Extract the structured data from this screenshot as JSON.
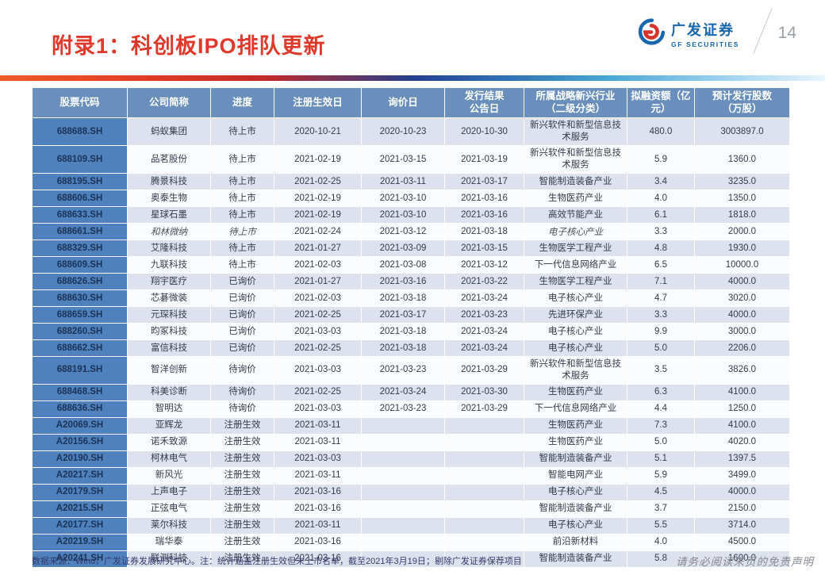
{
  "header": {
    "title": "附录1：科创板IPO排队更新",
    "page_number": "14",
    "logo_cn": "广发证券",
    "logo_en": "GF SECURITIES"
  },
  "table": {
    "columns": [
      "股票代码",
      "公司简称",
      "进度",
      "注册生效日",
      "询价日",
      "发行结果\n公告日",
      "所属战略新兴行业\n（二级分类）",
      "拟融资额（亿\n元）",
      "预计发行股数\n（万股）"
    ],
    "column_keys": [
      "code",
      "name",
      "progress",
      "reg-date",
      "inquiry-date",
      "result-date",
      "industry",
      "amount",
      "shares"
    ],
    "kai_row_index": 5,
    "rows": [
      [
        "688688.SH",
        "蚂蚁集团",
        "待上市",
        "2020-10-21",
        "2020-10-23",
        "2020-10-30",
        "新兴软件和新型信息技术服务",
        "480.0",
        "3003897.0"
      ],
      [
        "688109.SH",
        "品茗股份",
        "待上市",
        "2021-02-19",
        "2021-03-15",
        "2021-03-19",
        "新兴软件和新型信息技术服务",
        "5.9",
        "1360.0"
      ],
      [
        "688195.SH",
        "腾景科技",
        "待上市",
        "2021-02-25",
        "2021-03-11",
        "2021-03-17",
        "智能制造装备产业",
        "3.4",
        "3235.0"
      ],
      [
        "688606.SH",
        "奥泰生物",
        "待上市",
        "2021-02-19",
        "2021-03-10",
        "2021-03-16",
        "生物医药产业",
        "4.0",
        "1350.0"
      ],
      [
        "688633.SH",
        "星球石墨",
        "待上市",
        "2021-02-19",
        "2021-03-10",
        "2021-03-16",
        "高效节能产业",
        "6.1",
        "1818.0"
      ],
      [
        "688661.SH",
        "和林微纳",
        "待上市",
        "2021-02-24",
        "2021-03-12",
        "2021-03-18",
        "电子核心产业",
        "3.3",
        "2000.0"
      ],
      [
        "688329.SH",
        "艾隆科技",
        "待上市",
        "2021-01-27",
        "2021-03-09",
        "2021-03-15",
        "生物医学工程产业",
        "4.8",
        "1930.0"
      ],
      [
        "688609.SH",
        "九联科技",
        "待上市",
        "2021-02-03",
        "2021-03-08",
        "2021-03-12",
        "下一代信息网络产业",
        "6.5",
        "10000.0"
      ],
      [
        "688626.SH",
        "翔宇医疗",
        "已询价",
        "2021-01-27",
        "2021-03-16",
        "2021-03-22",
        "生物医学工程产业",
        "7.1",
        "4000.0"
      ],
      [
        "688630.SH",
        "芯碁微装",
        "已询价",
        "2021-02-03",
        "2021-03-18",
        "2021-03-24",
        "电子核心产业",
        "4.7",
        "3020.0"
      ],
      [
        "688659.SH",
        "元琛科技",
        "已询价",
        "2021-02-25",
        "2021-03-17",
        "2021-03-23",
        "先进环保产业",
        "3.3",
        "4000.0"
      ],
      [
        "688260.SH",
        "昀冢科技",
        "已询价",
        "2021-03-03",
        "2021-03-18",
        "2021-03-24",
        "电子核心产业",
        "9.9",
        "3000.0"
      ],
      [
        "688662.SH",
        "富信科技",
        "已询价",
        "2021-02-25",
        "2021-03-18",
        "2021-03-24",
        "电子核心产业",
        "5.0",
        "2206.0"
      ],
      [
        "688191.SH",
        "智洋创新",
        "待询价",
        "2021-03-03",
        "2021-03-23",
        "2021-03-29",
        "新兴软件和新型信息技术服务",
        "3.5",
        "3826.0"
      ],
      [
        "688468.SH",
        "科美诊断",
        "待询价",
        "2021-02-25",
        "2021-03-24",
        "2021-03-30",
        "生物医药产业",
        "6.3",
        "4100.0"
      ],
      [
        "688636.SH",
        "智明达",
        "待询价",
        "2021-03-03",
        "2021-03-23",
        "2021-03-29",
        "下一代信息网络产业",
        "4.4",
        "1250.0"
      ],
      [
        "A20069.SH",
        "亚辉龙",
        "注册生效",
        "2021-03-11",
        "",
        "",
        "生物医药产业",
        "7.3",
        "4100.0"
      ],
      [
        "A20156.SH",
        "诺禾致源",
        "注册生效",
        "2021-03-11",
        "",
        "",
        "生物医药产业",
        "5.0",
        "4020.0"
      ],
      [
        "A20190.SH",
        "柯林电气",
        "注册生效",
        "2021-03-03",
        "",
        "",
        "智能制造装备产业",
        "5.1",
        "1397.5"
      ],
      [
        "A20217.SH",
        "新风光",
        "注册生效",
        "2021-03-11",
        "",
        "",
        "智能电网产业",
        "5.9",
        "3499.0"
      ],
      [
        "A20179.SH",
        "上声电子",
        "注册生效",
        "2021-03-16",
        "",
        "",
        "电子核心产业",
        "4.5",
        "4000.0"
      ],
      [
        "A20215.SH",
        "正弦电气",
        "注册生效",
        "2021-03-16",
        "",
        "",
        "智能制造装备产业",
        "3.7",
        "2150.0"
      ],
      [
        "A20177.SH",
        "莱尔科技",
        "注册生效",
        "2021-03-11",
        "",
        "",
        "电子核心产业",
        "5.5",
        "3714.0"
      ],
      [
        "A20219.SH",
        "瑞华泰",
        "注册生效",
        "2021-03-16",
        "",
        "",
        "前沿新材料",
        "4.0",
        "4500.0"
      ],
      [
        "A20241.SH",
        "联测科技",
        "注册生效",
        "2021-03-16",
        "",
        "",
        "智能制造装备产业",
        "5.8",
        "1600.0"
      ]
    ]
  },
  "footer": {
    "source_note": "数据来源：Wind，广发证券发展研究中心。注：统计涵盖注册生效但未上市名单，截至2021年3月19日；剔除广发证券保荐项目",
    "disclaimer": "请务必阅读末页的免责声明"
  },
  "colors": {
    "title_red": "#e0382b",
    "header_bg": "#6a8fbc",
    "code_col_bg": "#4f81bd",
    "row_odd_bg": "#dee2ee",
    "row_even_bg": "#fbfcfe",
    "brand_blue": "#1766ae",
    "accent_gradient": [
      "#ef5a28",
      "#c22a28",
      "#243e8d",
      "#4aa7d8",
      "#e8f5fc"
    ]
  }
}
